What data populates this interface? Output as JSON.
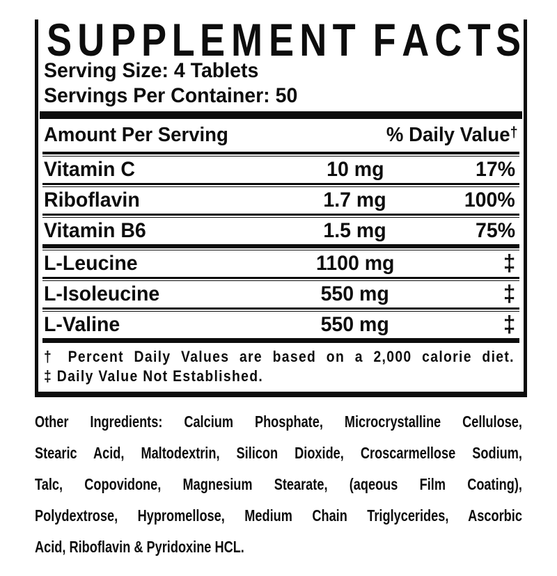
{
  "colors": {
    "text": "#0d0d0d",
    "background": "#ffffff"
  },
  "panel": {
    "title": "SUPPLEMENT FACTS",
    "serving_size": "Serving Size: 4 Tablets",
    "servings_per_container": "Servings Per Container: 50",
    "header": {
      "amount_label": "Amount Per Serving",
      "dv_label": "% Daily Value",
      "dv_dagger": "†"
    },
    "rows": [
      {
        "name": "Vitamin C",
        "amount": "10 mg",
        "dv": "17%"
      },
      {
        "name": "Riboflavin",
        "amount": "1.7 mg",
        "dv": "100%"
      },
      {
        "name": "Vitamin B6",
        "amount": "1.5 mg",
        "dv": "75%"
      },
      {
        "name": "L-Leucine",
        "amount": "1100 mg",
        "dv": "‡"
      },
      {
        "name": "L-Isoleucine",
        "amount": "550 mg",
        "dv": "‡"
      },
      {
        "name": "L-Valine",
        "amount": "550 mg",
        "dv": "‡"
      }
    ],
    "footnotes": [
      "† Percent Daily Values are based on a 2,000 calorie diet.",
      "‡ Daily Value Not Established."
    ]
  },
  "other_ingredients": {
    "label": "Other Ingredients:",
    "line1_rest": "Calcium Phosphate, Microcrystalline Cellulose,",
    "lines": [
      "Stearic Acid, Maltodextrin, Silicon Dioxide, Croscarmellose Sodium,",
      "Talc, Copovidone, Magnesium Stearate, (aqeous Film Coating),",
      "Polydextrose, Hypromellose, Medium Chain Triglycerides, Ascorbic",
      "Acid, Riboflavin & Pyridoxine HCL."
    ]
  }
}
